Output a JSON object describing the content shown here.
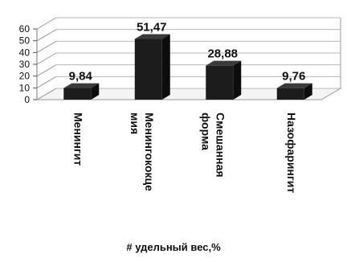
{
  "chart_data": {
    "type": "bar",
    "categories": [
      "Менингит",
      "Менингококце мия",
      "Смешанная форма",
      "Назофарингит"
    ],
    "category_lines": [
      [
        "Менингит"
      ],
      [
        "Менингококце",
        "мия"
      ],
      [
        "Смешанная",
        "форма"
      ],
      [
        "Назофарингит"
      ]
    ],
    "series": [
      {
        "name": "удельный вес,%",
        "values": [
          9.84,
          51.47,
          28.88,
          9.76
        ]
      }
    ],
    "value_labels": [
      "9,84",
      "51,47",
      "28,88",
      "9,76"
    ],
    "y_ticks": [
      "0",
      "10",
      "20",
      "30",
      "40",
      "50",
      "60"
    ],
    "ylim": [
      0,
      60
    ],
    "grid": true,
    "three_d": true,
    "legend_position": "bottom",
    "bar_color": "#1c1c1c",
    "legend_marker": "#"
  }
}
